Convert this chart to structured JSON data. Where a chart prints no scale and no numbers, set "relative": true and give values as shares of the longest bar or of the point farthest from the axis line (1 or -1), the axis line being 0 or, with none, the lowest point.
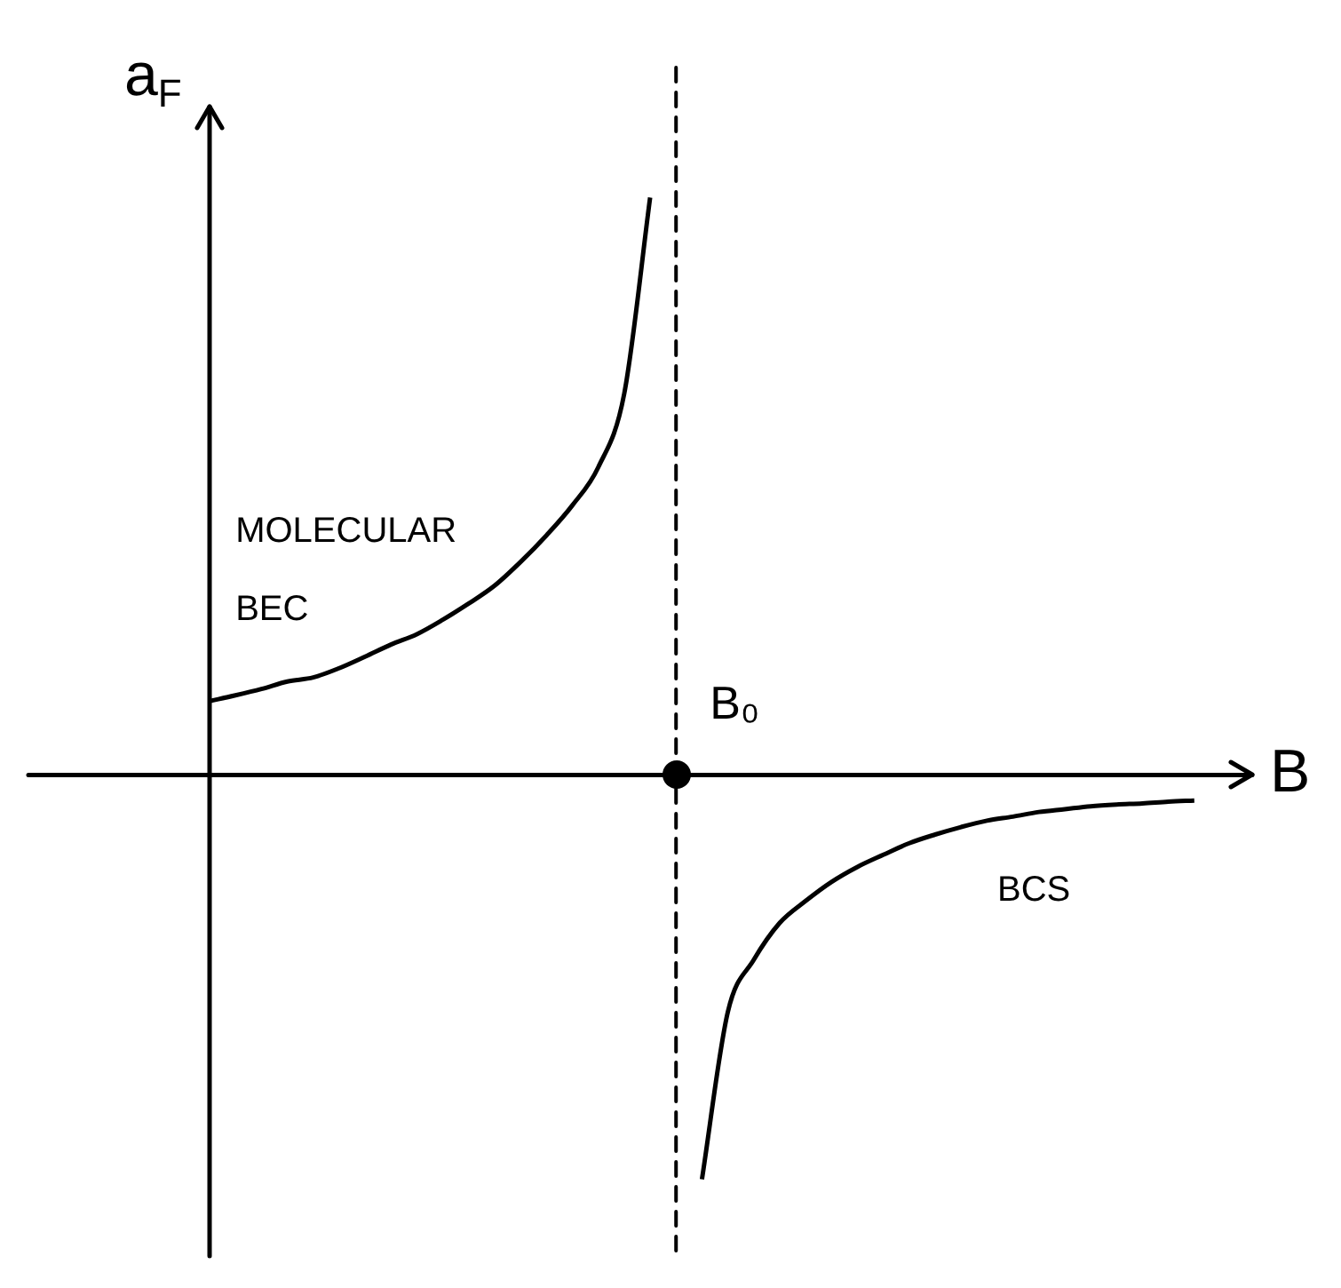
{
  "chart_data": {
    "type": "line",
    "relative": true,
    "xlabel": "B",
    "ylabel": "a$_{F}$",
    "categories": [
      null,
      null,
      null,
      null,
      null,
      null,
      null,
      null,
      null,
      null,
      null,
      null,
      null,
      null,
      null,
      null,
      null,
      null,
      null,
      null,
      null,
      null,
      null,
      null,
      null,
      null,
      null,
      null,
      null,
      null,
      null,
      null,
      null,
      null,
      null,
      null,
      null,
      null,
      null,
      null
    ],
    "series": [
      {
        "color": "#000000",
        "values": [
          0.128,
          0.138,
          0.149,
          0.162,
          0.169,
          0.185,
          0.205,
          0.226,
          0.244,
          0.269,
          0.297,
          0.328,
          0.369,
          0.415,
          0.467,
          0.533,
          0.66,
          1,
          null,
          null,
          null,
          null,
          null,
          null,
          null,
          null,
          null,
          null,
          null,
          null,
          null,
          null,
          null,
          null,
          null,
          null,
          null,
          null,
          null,
          null
        ]
      },
      {
        "color": "#000000",
        "values": [
          null,
          null,
          null,
          null,
          null,
          null,
          null,
          null,
          null,
          null,
          null,
          null,
          null,
          null,
          null,
          null,
          null,
          null,
          null,
          -0.7,
          -0.41,
          -0.32,
          -0.256,
          -0.218,
          -0.185,
          -0.159,
          -0.138,
          -0.118,
          -0.103,
          -0.09,
          -0.079,
          -0.072,
          -0.064,
          -0.059,
          -0.054,
          -0.051,
          -0.049,
          -0.046,
          -0.044,
          null
        ]
      }
    ],
    "annotations": [
      "MOLECULAR BEC",
      "BCS",
      "B₀"
    ],
    "legend": false,
    "marker": "none",
    "line_style": "solid"
  }
}
